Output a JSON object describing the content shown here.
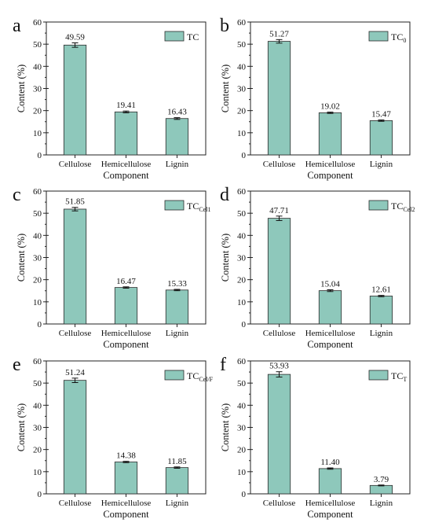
{
  "chart_data": [
    {
      "type": "bar",
      "panel_label": "a",
      "categories": [
        "Cellulose",
        "Hemicellulose",
        "Lignin"
      ],
      "values": [
        49.59,
        19.41,
        16.43
      ],
      "value_labels": [
        "49.59",
        "19.41",
        "16.43"
      ],
      "error": [
        1.0,
        0.4,
        0.4
      ],
      "legend": {
        "main": "TC",
        "sub": ""
      },
      "xlabel": "Component",
      "ylabel": "Content (%)",
      "ylim": [
        0,
        60
      ],
      "yticks": [
        0,
        10,
        20,
        30,
        40,
        50,
        60
      ]
    },
    {
      "type": "bar",
      "panel_label": "b",
      "categories": [
        "Cellulose",
        "Hemicellulose",
        "Lignin"
      ],
      "values": [
        51.27,
        19.02,
        15.47
      ],
      "value_labels": [
        "51.27",
        "19.02",
        "15.47"
      ],
      "error": [
        0.8,
        0.3,
        0.3
      ],
      "legend": {
        "main": "TC",
        "sub": "0"
      },
      "xlabel": "Component",
      "ylabel": "Content (%)",
      "ylim": [
        0,
        60
      ],
      "yticks": [
        0,
        10,
        20,
        30,
        40,
        50,
        60
      ]
    },
    {
      "type": "bar",
      "panel_label": "c",
      "categories": [
        "Cellulose",
        "Hemicellulose",
        "Lignin"
      ],
      "values": [
        51.85,
        16.47,
        15.33
      ],
      "value_labels": [
        "51.85",
        "16.47",
        "15.33"
      ],
      "error": [
        0.8,
        0.3,
        0.3
      ],
      "legend": {
        "main": "TC",
        "sub": "Cel1"
      },
      "xlabel": "Component",
      "ylabel": "Content (%)",
      "ylim": [
        0,
        60
      ],
      "yticks": [
        0,
        10,
        20,
        30,
        40,
        50,
        60
      ]
    },
    {
      "type": "bar",
      "panel_label": "d",
      "categories": [
        "Cellulose",
        "Hemicellulose",
        "Lignin"
      ],
      "values": [
        47.71,
        15.04,
        12.61
      ],
      "value_labels": [
        "47.71",
        "15.04",
        "12.61"
      ],
      "error": [
        1.0,
        0.4,
        0.3
      ],
      "legend": {
        "main": "TC",
        "sub": "Cel2"
      },
      "xlabel": "Component",
      "ylabel": "Content (%)",
      "ylim": [
        0,
        60
      ],
      "yticks": [
        0,
        10,
        20,
        30,
        40,
        50,
        60
      ]
    },
    {
      "type": "bar",
      "panel_label": "e",
      "categories": [
        "Cellulose",
        "Hemicellulose",
        "Lignin"
      ],
      "values": [
        51.24,
        14.38,
        11.85
      ],
      "value_labels": [
        "51.24",
        "14.38",
        "11.85"
      ],
      "error": [
        1.0,
        0.3,
        0.3
      ],
      "legend": {
        "main": "TC",
        "sub": "Cel/F"
      },
      "xlabel": "Component",
      "ylabel": "Content (%)",
      "ylim": [
        0,
        60
      ],
      "yticks": [
        0,
        10,
        20,
        30,
        40,
        50,
        60
      ]
    },
    {
      "type": "bar",
      "panel_label": "f",
      "categories": [
        "Cellulose",
        "Hemicellulose",
        "Lignin"
      ],
      "values": [
        53.93,
        11.4,
        3.79
      ],
      "value_labels": [
        "53.93",
        "11.40",
        "3.79"
      ],
      "error": [
        1.2,
        0.3,
        0.2
      ],
      "legend": {
        "main": "TC",
        "sub": "T"
      },
      "xlabel": "Component",
      "ylabel": "Content (%)",
      "ylim": [
        0,
        60
      ],
      "yticks": [
        0,
        10,
        20,
        30,
        40,
        50,
        60
      ]
    }
  ],
  "colors": {
    "bar_fill": "#8ec8bb",
    "bar_stroke": "#2b2b2b",
    "axis": "#222222"
  }
}
